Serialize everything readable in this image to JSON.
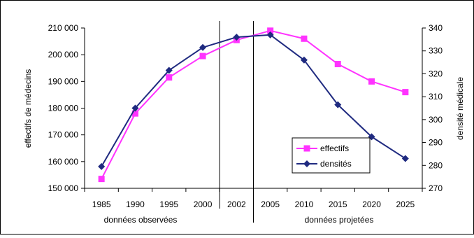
{
  "chart_data": {
    "type": "line",
    "categories": [
      "1985",
      "1990",
      "1995",
      "2000",
      "2002",
      "2005",
      "2010",
      "2015",
      "2020",
      "2025"
    ],
    "series": [
      {
        "name": "effectifs",
        "axis": "left",
        "color": "#ff33ff",
        "marker": "square",
        "values": [
          153500,
          178000,
          191500,
          199500,
          205500,
          209000,
          206000,
          196500,
          190000,
          186000
        ]
      },
      {
        "name": "densités",
        "axis": "right",
        "color": "#1f2a80",
        "marker": "diamond",
        "values": [
          279.5,
          305,
          321.5,
          331.5,
          336,
          337,
          326,
          306.5,
          292.5,
          283
        ]
      }
    ],
    "ylabel": "effectifs de médecins",
    "ylim": [
      150000,
      210000
    ],
    "yticks": [
      "150 000",
      "160 000",
      "170 000",
      "180 000",
      "190 000",
      "200 000",
      "210 000"
    ],
    "y2label": "densité médicale",
    "y2lim": [
      270,
      340
    ],
    "y2ticks": [
      "270",
      "280",
      "290",
      "300",
      "310",
      "320",
      "330",
      "340"
    ],
    "period_labels": [
      "données observées",
      "données projetées"
    ],
    "legend_position": "lower-right",
    "grid": false
  }
}
